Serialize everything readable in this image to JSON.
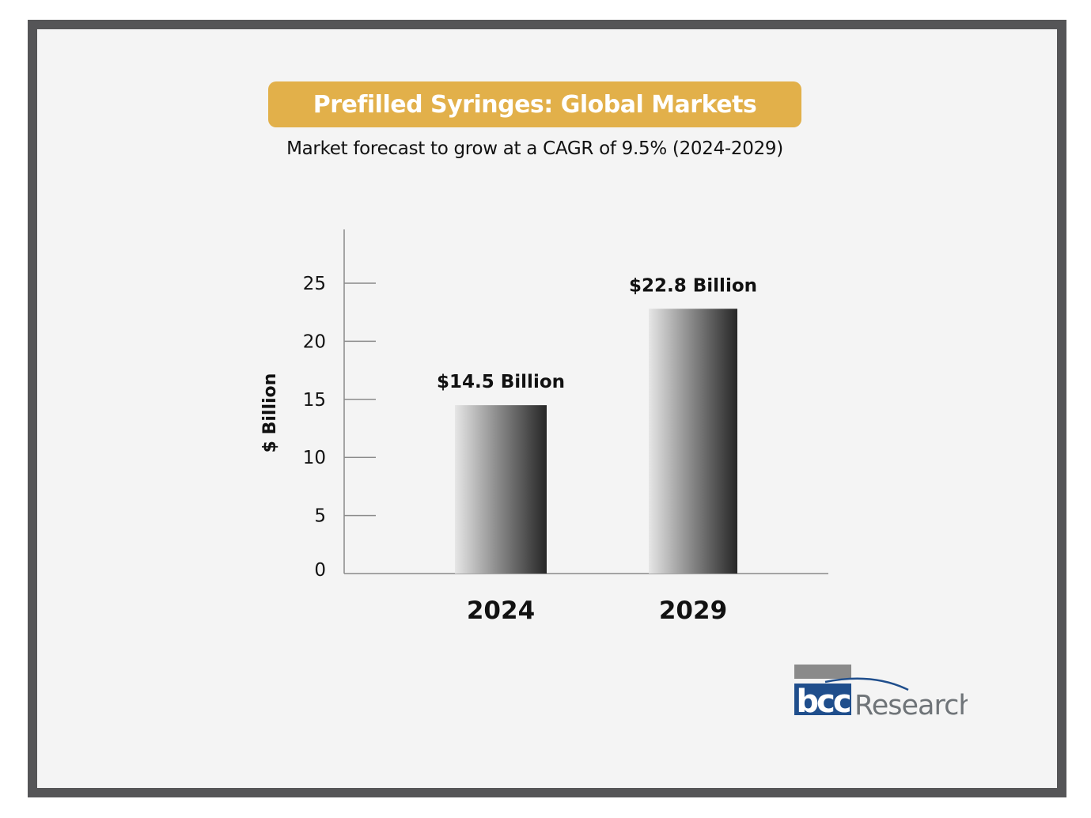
{
  "title": "Prefilled Syringes: Global Markets",
  "subtitle": "Market forecast to grow at a CAGR of 9.5% (2024-2029)",
  "logo": {
    "brand": "bcc",
    "text": "Research"
  },
  "colors": {
    "banner": "#e2b04a",
    "frame": "#555557",
    "background": "#f4f4f4",
    "bar_light": "#e2e2e2",
    "bar_dark": "#2a2a2a",
    "logo_blue": "#1f4e8c",
    "logo_gray": "#8a8a8a"
  },
  "chart_data": {
    "type": "bar",
    "categories": [
      "2024",
      "2029"
    ],
    "values": [
      14.5,
      22.8
    ],
    "value_labels": [
      "$14.5 Billion",
      "$22.8 Billion"
    ],
    "title": "Prefilled Syringes: Global Markets",
    "subtitle": "Market forecast to grow at a CAGR of 9.5% (2024-2029)",
    "xlabel": "",
    "ylabel": "$ Billion",
    "ylim": [
      0,
      30
    ],
    "yticks": [
      0,
      5,
      10,
      15,
      20,
      25
    ],
    "grid": false,
    "legend": "none"
  }
}
